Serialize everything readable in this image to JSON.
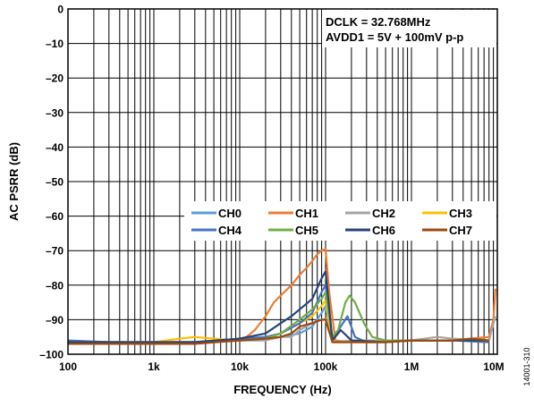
{
  "chart_data": {
    "type": "line",
    "xlabel": "FREQUENCY (Hz)",
    "ylabel": "AC PSRR (dB)",
    "x_scale": "log",
    "xlim": [
      100,
      10000000
    ],
    "ylim": [
      -100,
      0
    ],
    "grid": true,
    "x_ticks": [
      {
        "value": 100,
        "label": "100"
      },
      {
        "value": 1000,
        "label": "1k"
      },
      {
        "value": 10000,
        "label": "10k"
      },
      {
        "value": 100000,
        "label": "100k"
      },
      {
        "value": 1000000,
        "label": "1M"
      },
      {
        "value": 10000000,
        "label": "10M"
      }
    ],
    "y_ticks": [
      {
        "value": 0,
        "label": "0"
      },
      {
        "value": -10,
        "label": "–10"
      },
      {
        "value": -20,
        "label": "–20"
      },
      {
        "value": -30,
        "label": "–30"
      },
      {
        "value": -40,
        "label": "–40"
      },
      {
        "value": -50,
        "label": "–50"
      },
      {
        "value": -60,
        "label": "–60"
      },
      {
        "value": -70,
        "label": "–70"
      },
      {
        "value": -80,
        "label": "–80"
      },
      {
        "value": -90,
        "label": "–90"
      },
      {
        "value": -100,
        "label": "–100"
      }
    ],
    "annotation_lines": [
      "DCLK = 32.768MHz",
      "AVDD1 = 5V + 100mV p-p"
    ],
    "figure_id": "14001-310",
    "legend_placement": "center-right",
    "series": [
      {
        "name": "CH0",
        "color": "#5b9bd5",
        "points": [
          [
            100,
            -96.5
          ],
          [
            300,
            -96.8
          ],
          [
            1000,
            -97
          ],
          [
            3000,
            -96.5
          ],
          [
            10000,
            -96
          ],
          [
            20000,
            -95.5
          ],
          [
            30000,
            -95
          ],
          [
            50000,
            -94
          ],
          [
            70000,
            -92
          ],
          [
            90000,
            -88
          ],
          [
            100000,
            -86
          ],
          [
            120000,
            -96.5
          ],
          [
            200000,
            -96.5
          ],
          [
            500000,
            -96.5
          ],
          [
            1000000,
            -96
          ],
          [
            3000000,
            -96
          ],
          [
            8000000,
            -96.5
          ]
        ]
      },
      {
        "name": "CH1",
        "color": "#ed7d31",
        "points": [
          [
            100,
            -97
          ],
          [
            300,
            -97
          ],
          [
            1000,
            -97
          ],
          [
            2000,
            -96.5
          ],
          [
            5000,
            -96.5
          ],
          [
            8000,
            -96
          ],
          [
            10000,
            -95.5
          ],
          [
            12000,
            -95
          ],
          [
            15000,
            -93
          ],
          [
            20000,
            -89
          ],
          [
            25000,
            -85
          ],
          [
            30000,
            -83
          ],
          [
            40000,
            -80
          ],
          [
            50000,
            -77
          ],
          [
            60000,
            -75
          ],
          [
            70000,
            -73
          ],
          [
            80000,
            -71
          ],
          [
            90000,
            -70
          ],
          [
            100000,
            -69.5
          ],
          [
            110000,
            -82
          ],
          [
            130000,
            -96
          ],
          [
            200000,
            -96.5
          ],
          [
            500000,
            -96.5
          ],
          [
            1000000,
            -96
          ],
          [
            3000000,
            -96
          ],
          [
            8000000,
            -95
          ],
          [
            9000000,
            -90
          ],
          [
            9500000,
            -81
          ]
        ]
      },
      {
        "name": "CH2",
        "color": "#a5a5a5",
        "points": [
          [
            100,
            -96.5
          ],
          [
            300,
            -96.5
          ],
          [
            1000,
            -96.5
          ],
          [
            3000,
            -96.5
          ],
          [
            10000,
            -96
          ],
          [
            20000,
            -96
          ],
          [
            30000,
            -95
          ],
          [
            40000,
            -95
          ],
          [
            50000,
            -93
          ],
          [
            70000,
            -91
          ],
          [
            90000,
            -90
          ],
          [
            100000,
            -90
          ],
          [
            120000,
            -96.5
          ],
          [
            200000,
            -96
          ],
          [
            500000,
            -96
          ],
          [
            1000000,
            -96
          ],
          [
            2000000,
            -95
          ],
          [
            3000000,
            -95.5
          ],
          [
            8000000,
            -96
          ],
          [
            9500000,
            -89
          ]
        ]
      },
      {
        "name": "CH3",
        "color": "#ffc000",
        "points": [
          [
            100,
            -96.5
          ],
          [
            300,
            -96.5
          ],
          [
            1000,
            -96.5
          ],
          [
            2000,
            -95.5
          ],
          [
            3000,
            -95
          ],
          [
            5000,
            -95.5
          ],
          [
            10000,
            -96
          ],
          [
            20000,
            -95.5
          ],
          [
            30000,
            -94
          ],
          [
            50000,
            -91
          ],
          [
            70000,
            -89
          ],
          [
            90000,
            -86
          ],
          [
            100000,
            -84.5
          ],
          [
            120000,
            -96.5
          ],
          [
            200000,
            -96.5
          ],
          [
            500000,
            -96.5
          ],
          [
            1000000,
            -96
          ],
          [
            3000000,
            -96
          ],
          [
            8000000,
            -96
          ]
        ]
      },
      {
        "name": "CH4",
        "color": "#4472c4",
        "points": [
          [
            100,
            -96
          ],
          [
            300,
            -96.5
          ],
          [
            1000,
            -96.5
          ],
          [
            3000,
            -96.5
          ],
          [
            10000,
            -95.5
          ],
          [
            20000,
            -95
          ],
          [
            30000,
            -94
          ],
          [
            50000,
            -91
          ],
          [
            70000,
            -88
          ],
          [
            90000,
            -82
          ],
          [
            100000,
            -80
          ],
          [
            120000,
            -96
          ],
          [
            150000,
            -92
          ],
          [
            180000,
            -89
          ],
          [
            220000,
            -95
          ],
          [
            300000,
            -96.5
          ],
          [
            500000,
            -96.5
          ],
          [
            1000000,
            -96
          ],
          [
            3000000,
            -96
          ],
          [
            8000000,
            -96.5
          ]
        ]
      },
      {
        "name": "CH5",
        "color": "#70ad47",
        "points": [
          [
            100,
            -96.5
          ],
          [
            300,
            -96.5
          ],
          [
            1000,
            -96.5
          ],
          [
            3000,
            -96.5
          ],
          [
            10000,
            -96
          ],
          [
            20000,
            -95.5
          ],
          [
            30000,
            -94
          ],
          [
            50000,
            -90
          ],
          [
            70000,
            -87
          ],
          [
            90000,
            -84
          ],
          [
            100000,
            -82
          ],
          [
            120000,
            -95
          ],
          [
            140000,
            -93
          ],
          [
            170000,
            -85
          ],
          [
            190000,
            -83
          ],
          [
            220000,
            -85
          ],
          [
            280000,
            -91
          ],
          [
            350000,
            -95
          ],
          [
            500000,
            -96
          ],
          [
            1000000,
            -96
          ],
          [
            3000000,
            -96
          ],
          [
            8000000,
            -96
          ]
        ]
      },
      {
        "name": "CH6",
        "color": "#264478",
        "points": [
          [
            100,
            -96.5
          ],
          [
            300,
            -96.5
          ],
          [
            1000,
            -96.5
          ],
          [
            3000,
            -96.5
          ],
          [
            10000,
            -95.5
          ],
          [
            20000,
            -94
          ],
          [
            30000,
            -91
          ],
          [
            40000,
            -89
          ],
          [
            50000,
            -87
          ],
          [
            70000,
            -84
          ],
          [
            90000,
            -78
          ],
          [
            100000,
            -76
          ],
          [
            120000,
            -96
          ],
          [
            150000,
            -93
          ],
          [
            200000,
            -96
          ],
          [
            500000,
            -96.5
          ],
          [
            1000000,
            -96
          ],
          [
            3000000,
            -96
          ],
          [
            8000000,
            -96
          ]
        ]
      },
      {
        "name": "CH7",
        "color": "#9e480e",
        "points": [
          [
            100,
            -97
          ],
          [
            300,
            -97
          ],
          [
            1000,
            -97
          ],
          [
            3000,
            -97
          ],
          [
            10000,
            -96
          ],
          [
            20000,
            -95.5
          ],
          [
            30000,
            -95
          ],
          [
            40000,
            -94
          ],
          [
            50000,
            -92
          ],
          [
            70000,
            -91
          ],
          [
            90000,
            -90
          ],
          [
            100000,
            -90
          ],
          [
            120000,
            -96.5
          ],
          [
            200000,
            -96.5
          ],
          [
            500000,
            -96.5
          ],
          [
            1000000,
            -96
          ],
          [
            3000000,
            -96
          ],
          [
            5000000,
            -95.5
          ],
          [
            8000000,
            -96
          ]
        ]
      }
    ]
  }
}
